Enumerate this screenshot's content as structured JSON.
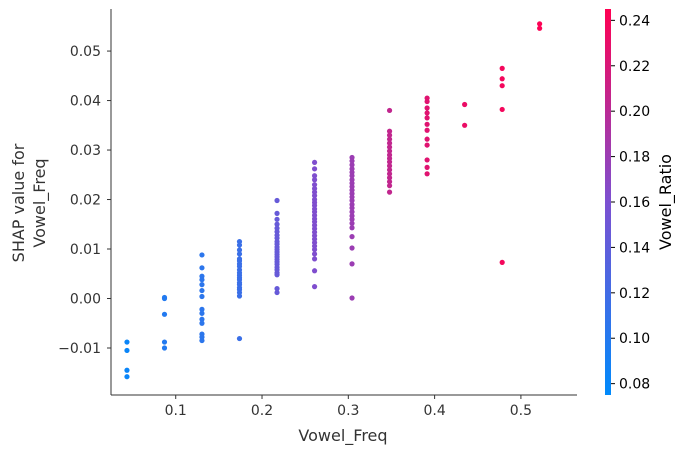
{
  "chart_data": {
    "type": "scatter",
    "title": "",
    "xlabel": "Vowel_Freq",
    "ylabel_lines": [
      "SHAP value for",
      "Vowel_Freq"
    ],
    "xlim": [
      0.025,
      0.565
    ],
    "ylim": [
      -0.0195,
      0.0585
    ],
    "x_ticks": [
      0.1,
      0.2,
      0.3,
      0.4,
      0.5
    ],
    "x_tick_labels": [
      "0.1",
      "0.2",
      "0.3",
      "0.4",
      "0.5"
    ],
    "y_ticks": [
      -0.01,
      0.0,
      0.01,
      0.02,
      0.03,
      0.04,
      0.05
    ],
    "y_tick_labels": [
      "−0.01",
      "0.00",
      "0.01",
      "0.02",
      "0.03",
      "0.04",
      "0.05"
    ],
    "colorbar": {
      "label": "Vowel_Ratio",
      "range": [
        0.075,
        0.245
      ],
      "ticks": [
        0.08,
        0.1,
        0.12,
        0.14,
        0.16,
        0.18,
        0.2,
        0.22,
        0.24
      ],
      "tick_labels": [
        "0.08",
        "0.10",
        "0.12",
        "0.14",
        "0.16",
        "0.18",
        "0.20",
        "0.22",
        "0.24"
      ],
      "color_low": "#008afb",
      "color_mid": "#7c50d1",
      "color_high": "#ff0052"
    },
    "series": [
      {
        "x": 0.0435,
        "c": 0.082,
        "y": [
          -0.0088,
          -0.0105,
          -0.0145,
          -0.0158
        ]
      },
      {
        "x": 0.087,
        "c": 0.098,
        "y": [
          0.0002,
          0.0,
          -0.0032,
          -0.0088,
          -0.01
        ]
      },
      {
        "x": 0.1304,
        "c": 0.105,
        "y": [
          0.0088,
          0.0062,
          0.0045,
          0.0038,
          0.0028,
          0.0016,
          0.0004,
          -0.0022,
          -0.003,
          -0.0042,
          -0.005,
          -0.0072,
          -0.0078,
          -0.0085
        ]
      },
      {
        "x": 0.1739,
        "c": 0.115,
        "y": [
          0.0115,
          0.0108,
          0.0098,
          0.009,
          0.008,
          0.0076,
          0.007,
          0.0065,
          0.0058,
          0.0052,
          0.0047,
          0.0042,
          0.0038,
          0.0032,
          0.0028,
          0.0022,
          0.0018,
          0.0012,
          0.0005,
          -0.0081
        ]
      },
      {
        "x": 0.2174,
        "c": 0.145,
        "y": [
          0.0198,
          0.0172,
          0.016,
          0.015,
          0.0142,
          0.0135,
          0.0128,
          0.0122,
          0.0115,
          0.011,
          0.0104,
          0.0099,
          0.0094,
          0.0089,
          0.0084,
          0.0079,
          0.0074,
          0.0069,
          0.0063,
          0.0058,
          0.0052,
          0.0048,
          0.002,
          0.0012
        ]
      },
      {
        "x": 0.2609,
        "c": 0.162,
        "y": [
          0.0275,
          0.0262,
          0.0248,
          0.024,
          0.023,
          0.0222,
          0.0215,
          0.0208,
          0.02,
          0.0194,
          0.0188,
          0.0181,
          0.0175,
          0.0168,
          0.0161,
          0.0155,
          0.0148,
          0.0141,
          0.0134,
          0.0127,
          0.012,
          0.0113,
          0.0106,
          0.0099,
          0.009,
          0.008,
          0.0056,
          0.0024
        ]
      },
      {
        "x": 0.3043,
        "c": 0.18,
        "y": [
          0.0285,
          0.0278,
          0.027,
          0.0262,
          0.0255,
          0.0248,
          0.024,
          0.0233,
          0.0226,
          0.0219,
          0.0212,
          0.0205,
          0.0198,
          0.019,
          0.0183,
          0.0175,
          0.0167,
          0.016,
          0.0152,
          0.0143,
          0.0125,
          0.0102,
          0.007,
          0.0001
        ]
      },
      {
        "x": 0.3478,
        "c": 0.205,
        "y": [
          0.038,
          0.0338,
          0.033,
          0.0322,
          0.0314,
          0.0306,
          0.0298,
          0.029,
          0.0283,
          0.0276,
          0.0268,
          0.026,
          0.0252,
          0.0244,
          0.0236,
          0.0228,
          0.0215
        ]
      },
      {
        "x": 0.3913,
        "c": 0.225,
        "y": [
          0.0405,
          0.0398,
          0.0385,
          0.0375,
          0.0365,
          0.0352,
          0.034,
          0.0322,
          0.031,
          0.028,
          0.0265,
          0.0252
        ]
      },
      {
        "x": 0.4348,
        "c": 0.232,
        "y": [
          0.0392,
          0.035
        ]
      },
      {
        "x": 0.4783,
        "c": 0.238,
        "y": [
          0.0465,
          0.0444,
          0.043,
          0.0382,
          0.0073
        ]
      },
      {
        "x": 0.5217,
        "c": 0.243,
        "y": [
          0.0555,
          0.0546
        ]
      }
    ]
  }
}
